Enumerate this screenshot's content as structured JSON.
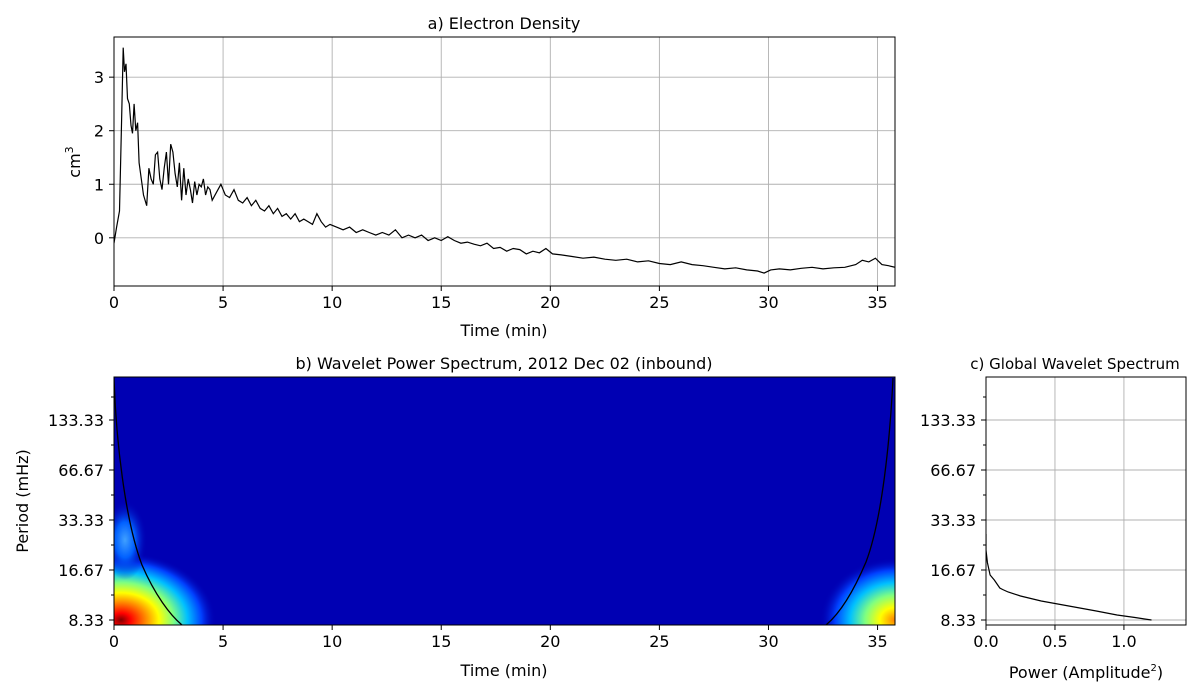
{
  "chart_data": [
    {
      "type": "line",
      "title": "a) Electron Density",
      "xlabel": "Time (min)",
      "ylabel_base": "cm",
      "ylabel_sup": "3",
      "xlim": [
        0,
        35.8
      ],
      "ylim": [
        -0.9,
        3.75
      ],
      "xticks": [
        0,
        5,
        10,
        15,
        20,
        25,
        30,
        35
      ],
      "yticks": [
        0,
        1,
        2,
        3
      ],
      "grid": true,
      "line_color": "#000000",
      "series": [
        {
          "x": [
            0,
            0.12,
            0.25,
            0.35,
            0.42,
            0.48,
            0.55,
            0.62,
            0.7,
            0.78,
            0.85,
            0.92,
            1.0,
            1.08,
            1.15,
            1.25,
            1.35,
            1.5,
            1.6,
            1.7,
            1.8,
            1.9,
            2.0,
            2.1,
            2.2,
            2.3,
            2.4,
            2.5,
            2.6,
            2.7,
            2.8,
            2.9,
            3.0,
            3.1,
            3.2,
            3.3,
            3.4,
            3.5,
            3.6,
            3.7,
            3.8,
            3.9,
            4.0,
            4.1,
            4.2,
            4.3,
            4.4,
            4.5,
            4.7,
            4.9,
            5.1,
            5.3,
            5.5,
            5.7,
            5.9,
            6.1,
            6.3,
            6.5,
            6.7,
            6.9,
            7.1,
            7.3,
            7.5,
            7.7,
            7.9,
            8.1,
            8.3,
            8.5,
            8.7,
            8.9,
            9.1,
            9.3,
            9.5,
            9.7,
            9.9,
            10.2,
            10.5,
            10.8,
            11.1,
            11.4,
            11.7,
            12.0,
            12.3,
            12.6,
            12.9,
            13.2,
            13.5,
            13.8,
            14.1,
            14.4,
            14.7,
            15.0,
            15.3,
            15.6,
            15.9,
            16.2,
            16.5,
            16.8,
            17.1,
            17.4,
            17.7,
            18.0,
            18.3,
            18.6,
            18.9,
            19.2,
            19.5,
            19.8,
            20.1,
            20.5,
            21.0,
            21.5,
            22.0,
            22.5,
            23.0,
            23.5,
            24.0,
            24.5,
            25.0,
            25.5,
            26.0,
            26.5,
            27.0,
            27.5,
            28.0,
            28.5,
            29.0,
            29.5,
            29.8,
            30.1,
            30.5,
            31.0,
            31.5,
            32.0,
            32.5,
            33.0,
            33.5,
            34.0,
            34.3,
            34.6,
            34.9,
            35.2,
            35.5,
            35.8
          ],
          "y": [
            -0.1,
            0.2,
            0.5,
            2.2,
            3.55,
            3.1,
            3.25,
            2.6,
            2.5,
            2.1,
            1.95,
            2.5,
            2.0,
            2.15,
            1.4,
            1.1,
            0.8,
            0.6,
            1.3,
            1.1,
            1.0,
            1.55,
            1.6,
            1.1,
            0.9,
            1.3,
            1.6,
            1.0,
            1.75,
            1.6,
            1.2,
            0.95,
            1.4,
            0.7,
            1.3,
            0.8,
            1.1,
            0.9,
            0.65,
            1.05,
            0.8,
            1.0,
            0.95,
            1.1,
            0.8,
            0.95,
            0.9,
            0.7,
            0.85,
            1.0,
            0.8,
            0.75,
            0.9,
            0.7,
            0.65,
            0.75,
            0.6,
            0.7,
            0.55,
            0.5,
            0.6,
            0.45,
            0.55,
            0.4,
            0.45,
            0.35,
            0.45,
            0.3,
            0.35,
            0.3,
            0.25,
            0.45,
            0.3,
            0.2,
            0.25,
            0.2,
            0.15,
            0.2,
            0.1,
            0.15,
            0.1,
            0.05,
            0.1,
            0.05,
            0.15,
            0.0,
            0.05,
            0.0,
            0.05,
            -0.05,
            0.0,
            -0.05,
            0.02,
            -0.05,
            -0.1,
            -0.08,
            -0.12,
            -0.15,
            -0.1,
            -0.2,
            -0.18,
            -0.25,
            -0.2,
            -0.22,
            -0.3,
            -0.25,
            -0.28,
            -0.2,
            -0.3,
            -0.32,
            -0.35,
            -0.38,
            -0.36,
            -0.4,
            -0.42,
            -0.4,
            -0.45,
            -0.43,
            -0.48,
            -0.5,
            -0.45,
            -0.5,
            -0.52,
            -0.55,
            -0.58,
            -0.56,
            -0.6,
            -0.62,
            -0.66,
            -0.6,
            -0.58,
            -0.6,
            -0.57,
            -0.55,
            -0.58,
            -0.56,
            -0.55,
            -0.5,
            -0.42,
            -0.45,
            -0.38,
            -0.5,
            -0.52,
            -0.55
          ]
        }
      ]
    },
    {
      "type": "heatmap",
      "title": "b) Wavelet Power Spectrum, 2012 Dec 02 (inbound)",
      "xlabel": "Time (min)",
      "ylabel": "Period (mHz)",
      "xlim": [
        0,
        35.8
      ],
      "xticks": [
        0,
        5,
        10,
        15,
        20,
        25,
        30,
        35
      ],
      "yticks": [
        "133.33",
        "66.67",
        "33.33",
        "16.67",
        "8.33"
      ],
      "y_scale": "log",
      "colormap": "jet",
      "background_color": "#0000b3",
      "power_peaks": [
        {
          "time_min": 0.5,
          "band": "8.33",
          "level": 1.0
        },
        {
          "time_min": 0.5,
          "band": "23",
          "level": 0.35
        },
        {
          "time_min": 35.8,
          "band": "8.33",
          "level": 0.75
        }
      ],
      "cone_of_influence": true
    },
    {
      "type": "line",
      "title": "c) Global Wavelet Spectrum",
      "xlabel_base": "Power (Amplitude",
      "xlabel_sup": "2",
      "xlabel_end": ")",
      "xlim": [
        0,
        1.45
      ],
      "xticks": [
        "0.0",
        "0.5",
        "1.0"
      ],
      "yticks": [
        "133.33",
        "66.67",
        "33.33",
        "16.67",
        "8.33"
      ],
      "y_scale": "log",
      "grid": true,
      "series": [
        {
          "power": [
            1.2,
            1.08,
            0.95,
            0.8,
            0.6,
            0.4,
            0.25,
            0.16,
            0.12,
            0.1,
            0.06,
            0.03,
            0.01,
            0.0,
            0.0
          ],
          "period_position": [
            0.0,
            0.05,
            0.1,
            0.18,
            0.28,
            0.38,
            0.48,
            0.56,
            0.61,
            0.64,
            0.8,
            0.9,
            1.15,
            1.4,
            1.72
          ]
        }
      ]
    }
  ]
}
